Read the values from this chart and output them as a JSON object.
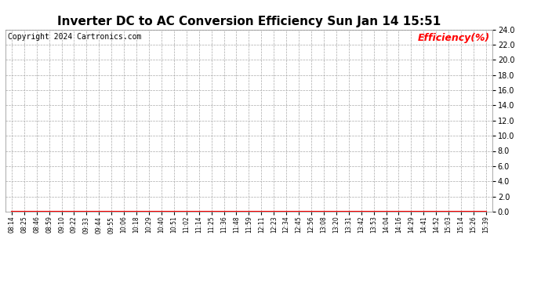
{
  "title": "Inverter DC to AC Conversion Efficiency Sun Jan 14 15:51",
  "copyright_text": "Copyright 2024 Cartronics.com",
  "legend_label": "Efficiency(%)",
  "legend_color": "#ff0000",
  "copyright_color": "#000000",
  "title_fontsize": 11,
  "copyright_fontsize": 7,
  "legend_fontsize": 9,
  "background_color": "#ffffff",
  "plot_bg_color": "#ffffff",
  "grid_color": "#aaaaaa",
  "line_color": "#ff0000",
  "line_value": 0.0,
  "ylim": [
    0.0,
    24.0
  ],
  "yticks": [
    0.0,
    2.0,
    4.0,
    6.0,
    8.0,
    10.0,
    12.0,
    14.0,
    16.0,
    18.0,
    20.0,
    22.0,
    24.0
  ],
  "x_labels": [
    "08:14",
    "08:25",
    "08:46",
    "08:59",
    "09:10",
    "09:22",
    "09:33",
    "09:44",
    "09:55",
    "10:06",
    "10:18",
    "10:29",
    "10:40",
    "10:51",
    "11:02",
    "11:14",
    "11:25",
    "11:36",
    "11:48",
    "11:59",
    "12:11",
    "12:23",
    "12:34",
    "12:45",
    "12:56",
    "13:08",
    "13:20",
    "13:31",
    "13:42",
    "13:53",
    "14:04",
    "14:16",
    "14:29",
    "14:41",
    "14:52",
    "15:03",
    "15:14",
    "15:26",
    "15:39"
  ],
  "y_data": [
    0,
    0,
    0,
    0,
    0,
    0,
    0,
    0,
    0,
    0,
    0,
    0,
    0,
    0,
    0,
    0,
    0,
    0,
    0,
    0,
    0,
    0,
    0,
    0,
    0,
    0,
    0,
    0,
    0,
    0,
    0,
    0,
    0,
    0,
    0,
    0,
    0,
    0,
    0
  ]
}
